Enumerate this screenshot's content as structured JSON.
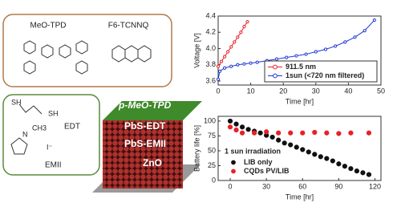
{
  "diagram": {
    "molecules": [
      "MeO-TPD",
      "F6-TCNNQ"
    ],
    "ligands": [
      "EDT",
      "EMII"
    ],
    "ligand_atoms": [
      "SH",
      "SH",
      "N",
      "CH3",
      "I⁻"
    ],
    "layers": [
      "p-MeO-TPD",
      "PbS-EDT",
      "PbS-EMII",
      "ZnO"
    ]
  },
  "chart_data": [
    {
      "type": "line",
      "x_label": "Time [hr]",
      "y_label": "Voltage [V]",
      "xlim": [
        0,
        50
      ],
      "xticks": [
        0,
        10,
        20,
        30,
        40,
        50
      ],
      "ylim": [
        3.55,
        4.4
      ],
      "yticks": [
        3.6,
        3.8,
        {
          "value": 4,
          "label": "4.0"
        },
        4.2,
        4.4
      ],
      "legend": "lower right",
      "series": [
        {
          "name": "911.5 nm",
          "color": "#e8202a",
          "x": [
            0,
            1,
            2,
            3,
            4,
            5,
            6,
            7,
            8,
            9
          ],
          "values": [
            3.78,
            3.84,
            3.9,
            3.96,
            4.02,
            4.08,
            4.14,
            4.2,
            4.27,
            4.33
          ]
        },
        {
          "name": "1sun (<720 nm filtered)",
          "color": "#1f35d8",
          "x": [
            0,
            0.5,
            2,
            4,
            6,
            8,
            10,
            12,
            15,
            18,
            21,
            24,
            27,
            30,
            33,
            36,
            39,
            42,
            45,
            48
          ],
          "values": [
            3.62,
            3.72,
            3.76,
            3.78,
            3.8,
            3.81,
            3.82,
            3.83,
            3.85,
            3.87,
            3.89,
            3.91,
            3.93,
            3.96,
            3.99,
            4.03,
            4.08,
            4.14,
            4.22,
            4.35
          ]
        }
      ]
    },
    {
      "type": "scatter",
      "x_label": "Time [hr]",
      "y_label": "Battery life [%]",
      "annotation": "1 sun irradiation",
      "xlim": [
        -10,
        125
      ],
      "xticks": [
        0,
        30,
        60,
        90,
        120
      ],
      "ylim": [
        0,
        108
      ],
      "yticks": [
        0,
        25,
        50,
        75,
        100
      ],
      "legend": "lower left",
      "series": [
        {
          "name": "LIB only",
          "color": "#111111",
          "x": [
            0,
            5,
            10,
            15,
            20,
            25,
            30,
            35,
            40,
            45,
            50,
            55,
            60,
            65,
            70,
            75,
            80,
            85,
            90,
            95,
            100,
            105,
            110,
            115
          ],
          "values": [
            100,
            95,
            90,
            86,
            83,
            80,
            76,
            73,
            68,
            63,
            60,
            56,
            52,
            48,
            44,
            40,
            37,
            33,
            28,
            24,
            20,
            16,
            13,
            10
          ]
        },
        {
          "name": "CQDs PV/LIB",
          "color": "#e8202a",
          "x": [
            0,
            5,
            10,
            20,
            30,
            40,
            50,
            60,
            70,
            80,
            90,
            100,
            115
          ],
          "values": [
            90,
            85,
            80,
            80,
            82,
            80,
            80,
            80,
            81,
            80,
            79,
            80,
            80
          ]
        }
      ]
    }
  ]
}
